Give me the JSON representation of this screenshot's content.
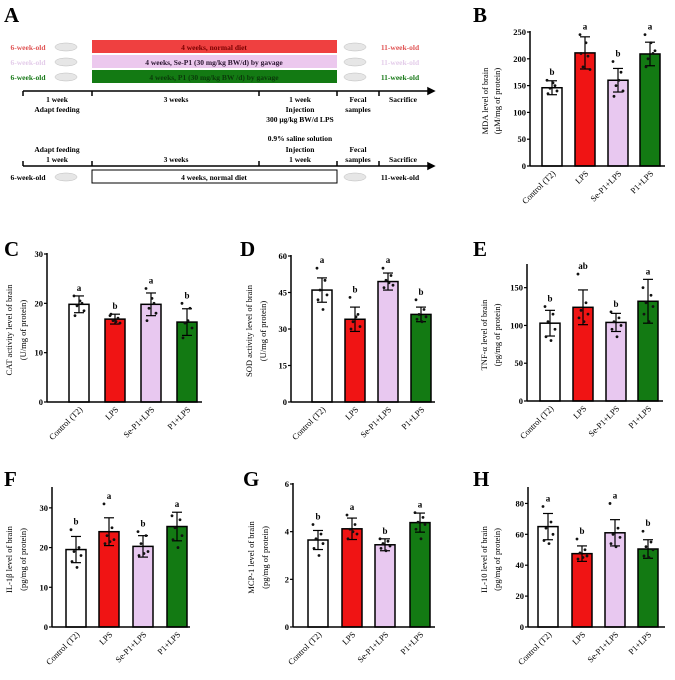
{
  "panel_a": {
    "label": "A",
    "colors": {
      "red": "#ef4040",
      "lavender": "#ecc8ee",
      "green": "#137a13"
    },
    "rows": [
      {
        "left": "6-week-old",
        "bar": "4 weeks, normal diet",
        "right": "11-week-old"
      },
      {
        "left": "6-week-old",
        "bar": "4 weeks, Se-P1 (30 mg/kg BW/d) by gavage",
        "right": "11-week-old"
      },
      {
        "left": "6-week-old",
        "bar": "4 weeks, P1 (30 mg/kg BW /d) by gavage",
        "right": "11-week-old"
      }
    ],
    "timeline1": {
      "adapt_a": "1 week",
      "adapt_b": "Adapt feeding",
      "three": "3 weeks",
      "inj_a": "1 week",
      "inj_b": "Injection",
      "inj_c": "300 μg/kg BW/d LPS",
      "fecal_a": "Fecal",
      "fecal_b": "samples",
      "sacrifice": "Sacrifice"
    },
    "timeline2": {
      "saline": "0.9% saline solution",
      "adapt_a": "Adapt feeding",
      "adapt_b": "1 week",
      "three": "3 weeks",
      "inj_a": "Injection",
      "inj_b": "1 week",
      "fecal_a": "Fecal",
      "fecal_b": "samples",
      "sacrifice": "Sacrifice",
      "left": "6-week-old",
      "bar": "4 weeks, normal diet",
      "right": "11-week-old"
    }
  },
  "chart_data": [
    {
      "panel": "B",
      "type": "bar",
      "ylabel": [
        "MDA level of brain",
        "(μM/mg of protein)"
      ],
      "ylim": [
        0,
        250
      ],
      "ticks": [
        0,
        50,
        100,
        150,
        200,
        250
      ],
      "categories": [
        "Control (T2)",
        "LPS",
        "Se-P1+LPS",
        "P1+LPS"
      ],
      "colors": [
        "#ffffff",
        "#f01414",
        "#e8c8f0",
        "#137a13"
      ],
      "values": [
        146,
        211,
        160,
        209
      ],
      "sd": [
        13,
        30,
        22,
        22
      ],
      "letters": [
        "b",
        "a",
        "b",
        "a"
      ],
      "points": [
        [
          160,
          150,
          145,
          140,
          135,
          155
        ],
        [
          245,
          205,
          185,
          180,
          210,
          230
        ],
        [
          195,
          175,
          150,
          140,
          130,
          160
        ],
        [
          245,
          210,
          200,
          215,
          185,
          230
        ]
      ]
    },
    {
      "panel": "C",
      "type": "bar",
      "ylabel": [
        "CAT activity level of brain",
        "(U/mg of protein)"
      ],
      "ylim": [
        0,
        30
      ],
      "ticks": [
        0,
        10,
        20,
        30
      ],
      "categories": [
        "Control (T2)",
        "LPS",
        "Se-P1+LPS",
        "P1+LPS"
      ],
      "colors": [
        "#ffffff",
        "#f01414",
        "#e8c8f0",
        "#137a13"
      ],
      "values": [
        19.8,
        16.8,
        19.8,
        16.2
      ],
      "sd": [
        1.7,
        1.0,
        2.3,
        2.7
      ],
      "letters": [
        "a",
        "b",
        "a",
        "b"
      ],
      "points": [
        [
          21.5,
          20,
          19.5,
          18.5,
          17.5,
          20.5
        ],
        [
          17.5,
          17,
          16.5,
          16,
          17.8,
          16.3
        ],
        [
          23,
          20,
          19,
          18,
          16.5,
          21
        ],
        [
          20,
          19,
          16,
          15,
          13,
          16.5
        ]
      ]
    },
    {
      "panel": "D",
      "type": "bar",
      "ylabel": [
        "SOD activity level of brain",
        "(U/mg of protein)"
      ],
      "ylim": [
        0,
        60
      ],
      "ticks": [
        0,
        15,
        30,
        45,
        60
      ],
      "categories": [
        "Control (T2)",
        "LPS",
        "Se-P1+LPS",
        "P1+LPS"
      ],
      "colors": [
        "#ffffff",
        "#f01414",
        "#e8c8f0",
        "#137a13"
      ],
      "values": [
        46,
        34,
        49.5,
        36
      ],
      "sd": [
        5,
        5,
        3.5,
        3
      ],
      "letters": [
        "a",
        "b",
        "a",
        "b"
      ],
      "points": [
        [
          55,
          50,
          46,
          44,
          42,
          38
        ],
        [
          43,
          36,
          33,
          31,
          30,
          35
        ],
        [
          55,
          52,
          50,
          48,
          47,
          49
        ],
        [
          42,
          38,
          36,
          35,
          34,
          33
        ]
      ]
    },
    {
      "panel": "E",
      "type": "bar",
      "ylabel": [
        "TNF-α level of brain",
        "(pg/mg of protein)"
      ],
      "ylim": [
        0,
        180
      ],
      "ticks": [
        0,
        50,
        100,
        150
      ],
      "categories": [
        "Control (T2)",
        "LPS",
        "Se-P1+LPS",
        "P1+LPS"
      ],
      "colors": [
        "#ffffff",
        "#f01414",
        "#e8c8f0",
        "#137a13"
      ],
      "values": [
        103,
        124,
        104,
        132
      ],
      "sd": [
        17,
        23,
        12,
        29
      ],
      "letters": [
        "b",
        "ab",
        "b",
        "a"
      ],
      "points": [
        [
          125,
          115,
          105,
          95,
          85,
          80
        ],
        [
          168,
          130,
          120,
          115,
          110,
          105
        ],
        [
          118,
          110,
          105,
          100,
          95,
          85
        ],
        [
          150,
          140,
          130,
          125,
          115,
          105
        ]
      ]
    },
    {
      "panel": "F",
      "type": "bar",
      "ylabel": [
        "IL-1β level of brain",
        "(pg/mg of protein)"
      ],
      "ylim": [
        0,
        35
      ],
      "ticks": [
        0,
        10,
        20,
        30
      ],
      "categories": [
        "Control (T2)",
        "LPS",
        "Se-P1+LPS",
        "P1+LPS"
      ],
      "colors": [
        "#ffffff",
        "#f01414",
        "#e8c8f0",
        "#137a13"
      ],
      "values": [
        19.5,
        24,
        20.3,
        25.3
      ],
      "sd": [
        3.3,
        3.5,
        2.7,
        3.6
      ],
      "letters": [
        "b",
        "a",
        "b",
        "a"
      ],
      "points": [
        [
          24.5,
          20,
          19,
          18,
          16.5,
          15
        ],
        [
          31,
          25,
          23,
          22,
          21,
          21.5
        ],
        [
          24,
          23,
          21,
          19,
          18,
          18.5
        ],
        [
          28,
          27,
          25,
          23,
          22,
          20
        ]
      ]
    },
    {
      "panel": "G",
      "type": "bar",
      "ylabel": [
        "MCP-1 level of brain",
        "(pg/mg of protein)"
      ],
      "ylim": [
        0,
        6
      ],
      "ticks": [
        0,
        2,
        4,
        6
      ],
      "categories": [
        "Control (T2)",
        "LPS",
        "Se-P1+LPS",
        "P1+LPS"
      ],
      "colors": [
        "#ffffff",
        "#f01414",
        "#e8c8f0",
        "#137a13"
      ],
      "values": [
        3.65,
        4.12,
        3.45,
        4.38
      ],
      "sd": [
        0.4,
        0.45,
        0.25,
        0.4
      ],
      "letters": [
        "b",
        "a",
        "b",
        "a"
      ],
      "points": [
        [
          4.3,
          3.9,
          3.7,
          3.5,
          3.3,
          3.0
        ],
        [
          4.7,
          4.3,
          4.1,
          3.9,
          3.7,
          4.0
        ],
        [
          3.7,
          3.6,
          3.5,
          3.4,
          3.3,
          3.2
        ],
        [
          4.8,
          4.6,
          4.4,
          4.3,
          4.1,
          3.7
        ]
      ]
    },
    {
      "panel": "H",
      "type": "bar",
      "ylabel": [
        "IL-10 level of brain",
        "(pg/mg of protein)"
      ],
      "ylim": [
        0,
        90
      ],
      "ticks": [
        0,
        20,
        40,
        60,
        80
      ],
      "categories": [
        "Control (T2)",
        "LPS",
        "Se-P1+LPS",
        "P1+LPS"
      ],
      "colors": [
        "#ffffff",
        "#f01414",
        "#e8c8f0",
        "#137a13"
      ],
      "values": [
        65,
        47.5,
        61,
        50.5
      ],
      "sd": [
        8.5,
        5,
        8.5,
        6
      ],
      "letters": [
        "a",
        "b",
        "a",
        "b"
      ],
      "points": [
        [
          78,
          68,
          64,
          60,
          56,
          54
        ],
        [
          57,
          50,
          48,
          46,
          44,
          45
        ],
        [
          80,
          64,
          60,
          58,
          54,
          52
        ],
        [
          62,
          55,
          52,
          50,
          46,
          45
        ]
      ]
    }
  ]
}
